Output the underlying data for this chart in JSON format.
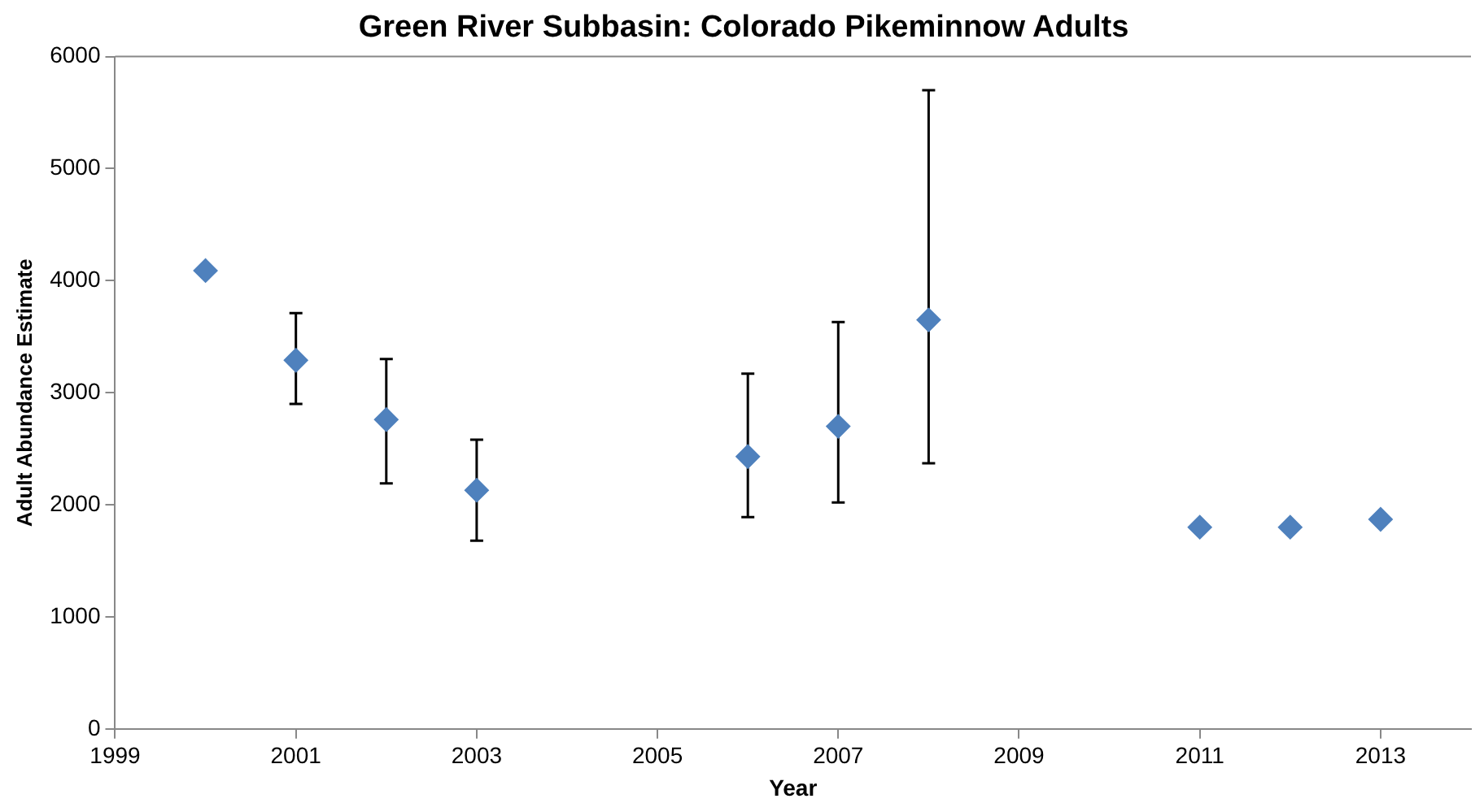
{
  "chart_data": {
    "type": "scatter",
    "title": "Green River Subbasin: Colorado Pikeminnow Adults",
    "xlabel": "Year",
    "ylabel": "Adult Abundance Estimate",
    "x": [
      2000,
      2001,
      2002,
      2003,
      2006,
      2007,
      2008,
      2011,
      2012,
      2013
    ],
    "series": [
      {
        "color": "#4f81bd",
        "values": [
          4090,
          3290,
          2760,
          2130,
          2430,
          2700,
          3650,
          1800,
          1800,
          1870
        ],
        "errors": [
          null,
          [
            2900,
            3710
          ],
          [
            2190,
            3300
          ],
          [
            1680,
            2580
          ],
          [
            1890,
            3170
          ],
          [
            2020,
            3630
          ],
          [
            2370,
            5700
          ],
          null,
          null,
          null
        ]
      }
    ],
    "xlim": [
      1999,
      2014
    ],
    "xticks": [
      1999,
      2001,
      2003,
      2005,
      2007,
      2009,
      2011,
      2013
    ],
    "ylim": [
      0,
      6000
    ],
    "yticks": [
      0,
      1000,
      2000,
      3000,
      4000,
      5000,
      6000
    ],
    "grid": false,
    "legend": false,
    "marker": "diamond"
  }
}
